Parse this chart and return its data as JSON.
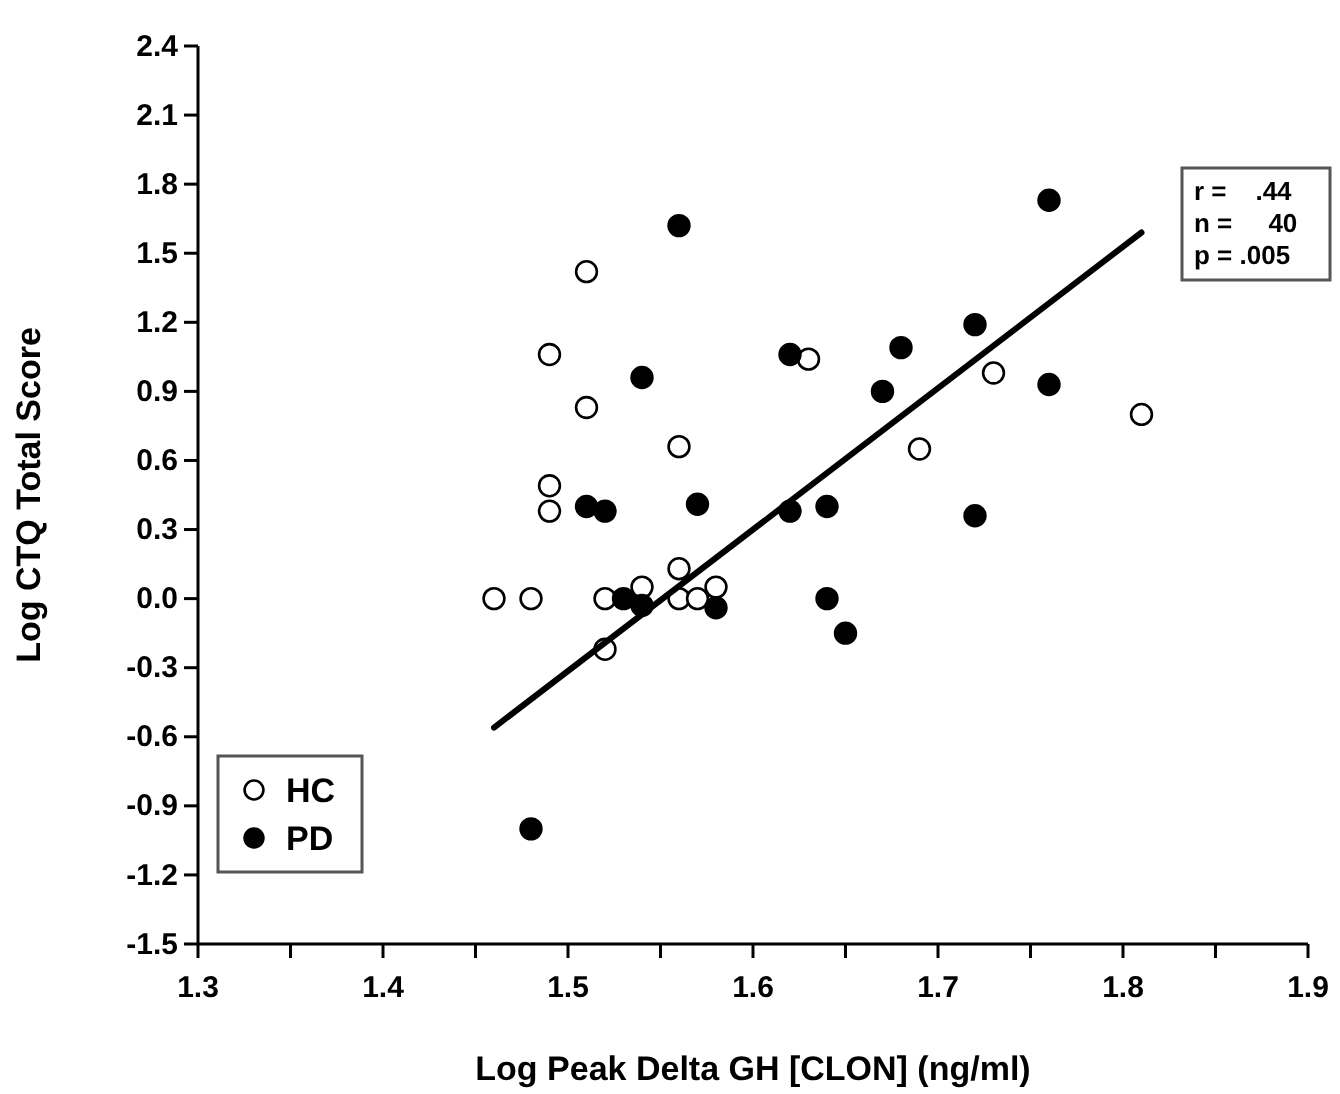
{
  "chart_data": {
    "type": "scatter",
    "xlabel": "Log Peak Delta GH [CLON] (ng/ml)",
    "ylabel": "Log CTQ Total Score",
    "xlim": [
      1.3,
      1.9
    ],
    "ylim": [
      -1.5,
      2.4
    ],
    "xticks": [
      {
        "value": 1.3,
        "label": "1.3"
      },
      {
        "value": 1.35,
        "label": null
      },
      {
        "value": 1.4,
        "label": "1.4"
      },
      {
        "value": 1.45,
        "label": null
      },
      {
        "value": 1.5,
        "label": "1.5"
      },
      {
        "value": 1.55,
        "label": null
      },
      {
        "value": 1.6,
        "label": "1.6"
      },
      {
        "value": 1.65,
        "label": null
      },
      {
        "value": 1.7,
        "label": "1.7"
      },
      {
        "value": 1.75,
        "label": null
      },
      {
        "value": 1.8,
        "label": "1.8"
      },
      {
        "value": 1.85,
        "label": null
      },
      {
        "value": 1.9,
        "label": "1.9"
      }
    ],
    "yticks": [
      {
        "value": -1.5,
        "label": "-1.5"
      },
      {
        "value": -1.2,
        "label": "-1.2"
      },
      {
        "value": -0.9,
        "label": "-0.9"
      },
      {
        "value": -0.6,
        "label": "-0.6"
      },
      {
        "value": -0.3,
        "label": "-0.3"
      },
      {
        "value": 0,
        "label": "0.0"
      },
      {
        "value": 0.3,
        "label": "0.3"
      },
      {
        "value": 0.6,
        "label": "0.6"
      },
      {
        "value": 0.9,
        "label": "0.9"
      },
      {
        "value": 1.2,
        "label": "1.2"
      },
      {
        "value": 1.5,
        "label": "1.5"
      },
      {
        "value": 1.8,
        "label": "1.8"
      },
      {
        "value": 2.1,
        "label": "2.1"
      },
      {
        "value": 2.4,
        "label": "2.4"
      }
    ],
    "grid": false,
    "legend": "bottom left",
    "marker": "circle",
    "annotations": [
      "r =    .44",
      "n =     40",
      "p = .005"
    ],
    "series": [
      {
        "name": "HC",
        "color": "#ffffff",
        "x": [
          1.51,
          1.49,
          1.63,
          1.51,
          1.56,
          1.49,
          1.49,
          1.46,
          1.48,
          1.52,
          1.54,
          1.56,
          1.56,
          1.57,
          1.58,
          1.52,
          1.73,
          1.69,
          1.81
        ],
        "values": [
          1.42,
          1.06,
          1.04,
          0.83,
          0.66,
          0.49,
          0.38,
          0,
          0,
          0,
          0.05,
          0.13,
          0,
          0,
          0.05,
          -0.22,
          0.98,
          0.65,
          0.8
        ]
      },
      {
        "name": "PD",
        "color": "#000000",
        "x": [
          1.56,
          1.54,
          1.62,
          1.51,
          1.52,
          1.57,
          1.62,
          1.64,
          1.53,
          1.54,
          1.58,
          1.64,
          1.65,
          1.76,
          1.72,
          1.68,
          1.67,
          1.76,
          1.72,
          1.48
        ],
        "values": [
          1.62,
          0.96,
          1.06,
          0.4,
          0.38,
          0.41,
          0.38,
          0.4,
          0,
          -0.03,
          -0.04,
          0,
          -0.15,
          1.73,
          1.19,
          1.09,
          0.9,
          0.93,
          0.36,
          -1.0
        ]
      },
      {
        "type": "line",
        "color": "#000000",
        "line_style": "solid",
        "marker": "none",
        "x": [
          1.46,
          1.81
        ],
        "values": [
          -0.56,
          1.59
        ]
      }
    ]
  }
}
